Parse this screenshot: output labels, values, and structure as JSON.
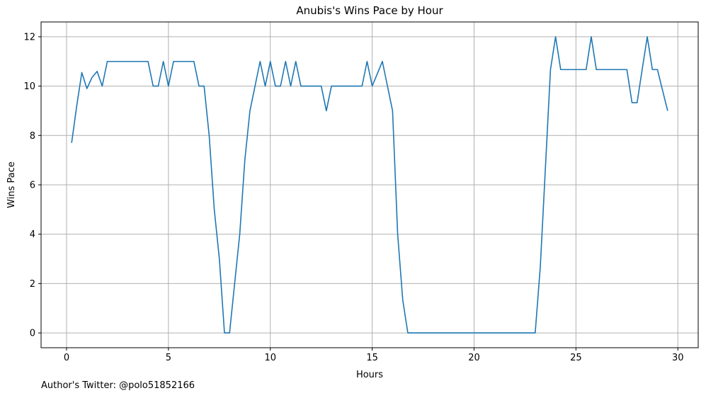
{
  "footer": {
    "text": "Author's Twitter: @polo51852166"
  },
  "chart_data": {
    "type": "line",
    "title": "Anubis's Wins Pace by Hour",
    "xlabel": "Hours",
    "ylabel": "Wins Pace",
    "xlim": [
      -1.25,
      31.0
    ],
    "ylim": [
      -0.6,
      12.6
    ],
    "xticks": [
      0,
      5,
      10,
      15,
      20,
      25,
      30
    ],
    "yticks": [
      0,
      2,
      4,
      6,
      8,
      10,
      12
    ],
    "grid": true,
    "line_color": "#1f77b4",
    "series": [
      {
        "x": [
          0.25,
          0.5,
          0.75,
          1.0,
          1.25,
          1.5,
          1.75,
          2.0,
          2.25,
          2.5,
          2.75,
          3.0,
          3.25,
          3.5,
          3.75,
          4.0,
          4.25,
          4.5,
          4.75,
          5.0,
          5.25,
          5.5,
          5.75,
          6.0,
          6.25,
          6.5,
          6.75,
          7.0,
          7.25,
          7.5,
          7.75,
          8.0,
          8.25,
          8.5,
          8.75,
          9.0,
          9.25,
          9.5,
          9.75,
          10.0,
          10.25,
          10.5,
          10.75,
          11.0,
          11.25,
          11.5,
          11.75,
          12.0,
          12.25,
          12.5,
          12.75,
          13.0,
          13.25,
          13.5,
          13.75,
          14.0,
          14.25,
          14.5,
          14.75,
          15.0,
          15.25,
          15.5,
          15.75,
          16.0,
          16.25,
          16.5,
          16.75,
          17.0,
          17.5,
          18.0,
          18.5,
          19.0,
          19.5,
          20.0,
          20.5,
          21.0,
          21.5,
          22.0,
          22.5,
          23.0,
          23.25,
          23.5,
          23.75,
          24.0,
          24.25,
          24.5,
          24.75,
          25.0,
          25.25,
          25.5,
          25.75,
          26.0,
          26.25,
          26.5,
          26.75,
          27.0,
          27.25,
          27.5,
          27.75,
          28.0,
          28.25,
          28.5,
          28.75,
          29.0,
          29.25,
          29.5
        ],
        "y": [
          7.7,
          9.2,
          10.55,
          9.9,
          10.35,
          10.6,
          10.0,
          11.0,
          11.0,
          11.0,
          11.0,
          11.0,
          11.0,
          11.0,
          11.0,
          11.0,
          10.0,
          10.0,
          11.0,
          10.0,
          11.0,
          11.0,
          11.0,
          11.0,
          11.0,
          10.0,
          10.0,
          8.0,
          5.0,
          3.0,
          0.0,
          0.0,
          2.0,
          4.0,
          7.0,
          9.0,
          10.0,
          11.0,
          10.0,
          11.0,
          10.0,
          10.0,
          11.0,
          10.0,
          11.0,
          10.0,
          10.0,
          10.0,
          10.0,
          10.0,
          9.0,
          10.0,
          10.0,
          10.0,
          10.0,
          10.0,
          10.0,
          10.0,
          11.0,
          10.0,
          10.5,
          11.0,
          10.0,
          9.0,
          4.0,
          1.33,
          0.0,
          0.0,
          0.0,
          0.0,
          0.0,
          0.0,
          0.0,
          0.0,
          0.0,
          0.0,
          0.0,
          0.0,
          0.0,
          0.0,
          2.67,
          6.67,
          10.67,
          12.0,
          10.67,
          10.67,
          10.67,
          10.67,
          10.67,
          10.67,
          12.0,
          10.67,
          10.67,
          10.67,
          10.67,
          10.67,
          10.67,
          10.67,
          9.33,
          9.33,
          10.67,
          12.0,
          10.67,
          10.67,
          9.83,
          9.0
        ]
      }
    ]
  }
}
